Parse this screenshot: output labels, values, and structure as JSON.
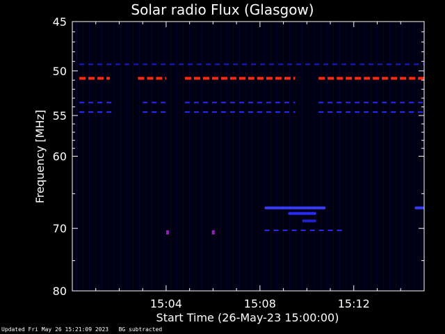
{
  "chart_data": {
    "type": "heatmap",
    "title": "Solar radio Flux (Glasgow)",
    "xlabel": "Start Time (26-May-23 15:00:00)",
    "ylabel": "Frequency [MHz]",
    "x_range_minutes": [
      0,
      15
    ],
    "y_range_mhz": [
      45,
      80
    ],
    "y_scale": "log",
    "x_ticks": [
      {
        "value": 4,
        "label": "15:04"
      },
      {
        "value": 8,
        "label": "15:08"
      },
      {
        "value": 12,
        "label": "15:12"
      }
    ],
    "y_ticks": [
      {
        "value": 45,
        "label": "45"
      },
      {
        "value": 50,
        "label": "50"
      },
      {
        "value": 55,
        "label": "55"
      },
      {
        "value": 60,
        "label": "60"
      },
      {
        "value": 70,
        "label": "70"
      },
      {
        "value": 80,
        "label": "80"
      }
    ],
    "features": [
      {
        "name": "interference",
        "freq": 50.8,
        "t_start": 0.3,
        "t_end": 1.6,
        "color": "#ff2a10"
      },
      {
        "name": "interference",
        "freq": 50.8,
        "t_start": 2.8,
        "t_end": 4.0,
        "color": "#ff2a10"
      },
      {
        "name": "interference",
        "freq": 50.8,
        "t_start": 4.8,
        "t_end": 9.5,
        "color": "#ff2a10"
      },
      {
        "name": "interference",
        "freq": 50.8,
        "t_start": 10.5,
        "t_end": 15.0,
        "color": "#ff2a10"
      },
      {
        "name": "blue-line",
        "freq": 53.5,
        "t_start": 0.3,
        "t_end": 1.8,
        "color": "#2a2aff"
      },
      {
        "name": "blue-line",
        "freq": 53.5,
        "t_start": 3.0,
        "t_end": 4.0,
        "color": "#2a2aff"
      },
      {
        "name": "blue-line",
        "freq": 53.5,
        "t_start": 4.8,
        "t_end": 9.5,
        "color": "#2a2aff"
      },
      {
        "name": "blue-line",
        "freq": 53.5,
        "t_start": 10.5,
        "t_end": 15.0,
        "color": "#2a2aff"
      },
      {
        "name": "blue-line",
        "freq": 54.6,
        "t_start": 0.3,
        "t_end": 1.8,
        "color": "#2a2aff"
      },
      {
        "name": "blue-line",
        "freq": 54.6,
        "t_start": 3.0,
        "t_end": 4.0,
        "color": "#2a2aff"
      },
      {
        "name": "blue-line",
        "freq": 54.6,
        "t_start": 4.8,
        "t_end": 9.5,
        "color": "#2a2aff"
      },
      {
        "name": "blue-line",
        "freq": 54.6,
        "t_start": 10.5,
        "t_end": 15.0,
        "color": "#2a2aff"
      },
      {
        "name": "blue-line",
        "freq": 49.3,
        "t_start": 0.3,
        "t_end": 15.0,
        "color": "#1a1ad0"
      },
      {
        "name": "burst",
        "freq": 67.0,
        "t_start": 8.2,
        "t_end": 10.8,
        "color": "#3a3aff"
      },
      {
        "name": "burst",
        "freq": 67.8,
        "t_start": 9.2,
        "t_end": 10.4,
        "color": "#2a2aff"
      },
      {
        "name": "burst",
        "freq": 68.9,
        "t_start": 9.8,
        "t_end": 10.4,
        "color": "#2020d0"
      },
      {
        "name": "blue-line",
        "freq": 70.3,
        "t_start": 8.2,
        "t_end": 11.5,
        "color": "#2a2aff"
      },
      {
        "name": "burst",
        "freq": 67.0,
        "t_start": 14.6,
        "t_end": 15.0,
        "color": "#3a3aff"
      },
      {
        "name": "spot",
        "freq": 70.6,
        "t_start": 4.0,
        "t_end": 4.12,
        "color": "#9020b0"
      },
      {
        "name": "spot",
        "freq": 70.6,
        "t_start": 5.95,
        "t_end": 6.07,
        "color": "#9020b0"
      }
    ],
    "grid": false,
    "legend": "none"
  },
  "footer": {
    "updated": "Updated Fri May 26 15:21:09 2023",
    "note": "BG subtracted"
  }
}
